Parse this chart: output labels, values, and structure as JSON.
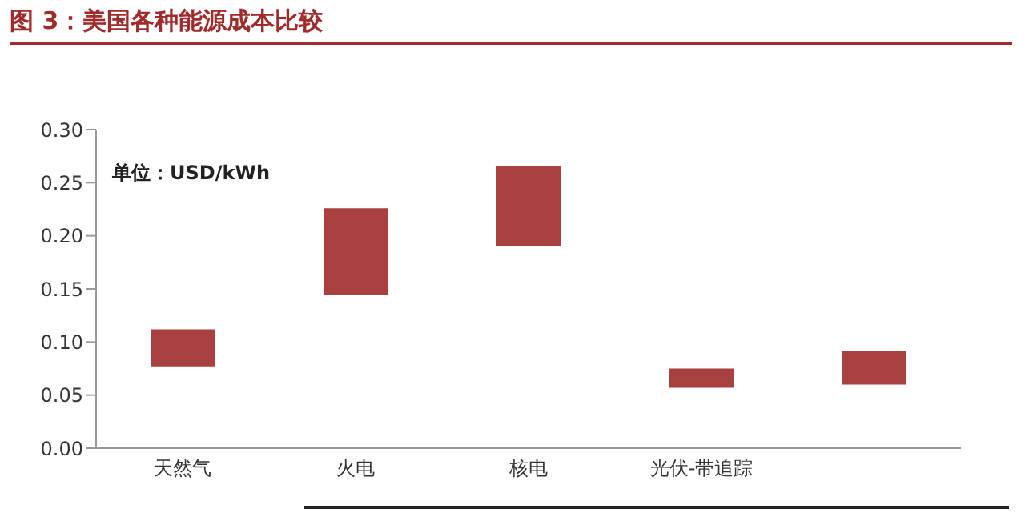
{
  "chart_data": {
    "type": "bar",
    "title": "图 3：美国各种能源成本比较",
    "annotations": [
      "单位：USD/kWh"
    ],
    "categories": [
      "天然气",
      "火电",
      "核电",
      "光伏-带追踪",
      null
    ],
    "base": [
      0.077,
      0.144,
      0.19,
      0.057,
      0.06
    ],
    "values": [
      0.035,
      0.082,
      0.076,
      0.018,
      0.032
    ],
    "color": "#a8403f",
    "ylim": [
      0,
      0.3
    ],
    "yticks": [
      {
        "value": 0,
        "label": "0.00"
      },
      {
        "value": 0.05,
        "label": "0.05"
      },
      {
        "value": 0.1,
        "label": "0.10"
      },
      {
        "value": 0.15,
        "label": "0.15"
      },
      {
        "value": 0.2,
        "label": "0.20"
      },
      {
        "value": 0.25,
        "label": "0.25"
      },
      {
        "value": 0.3,
        "label": "0.30"
      }
    ]
  }
}
